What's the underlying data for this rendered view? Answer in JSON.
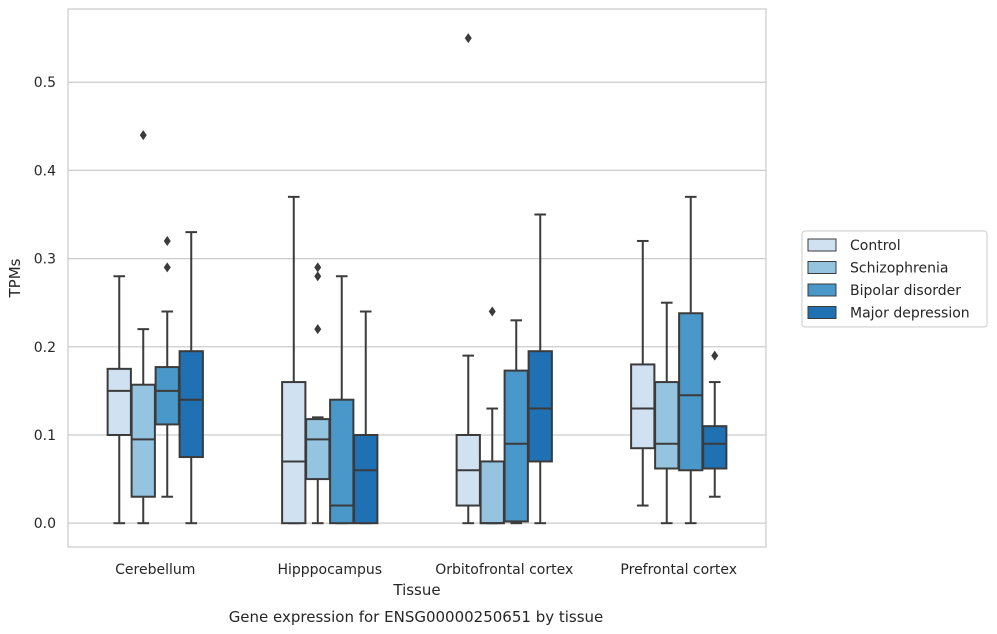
{
  "chart_data": {
    "type": "box",
    "title": "",
    "caption": "Gene expression for ENSG00000250651 by tissue",
    "xlabel": "Tissue",
    "ylabel": "TPMs",
    "ylim": [
      -0.027,
      0.583
    ],
    "yticks": [
      0.0,
      0.1,
      0.2,
      0.3,
      0.4,
      0.5
    ],
    "ytick_labels": [
      "0.0",
      "0.1",
      "0.2",
      "0.3",
      "0.4",
      "0.5"
    ],
    "grid": "horizontal",
    "legend_position": "right",
    "categories": [
      "Cerebellum",
      "Hipppocampus",
      "Orbitofrontal cortex",
      "Prefrontal cortex"
    ],
    "series": [
      {
        "name": "Control",
        "color": "#d0e1f2",
        "boxes": [
          {
            "whislo": 0.0,
            "q1": 0.1,
            "med": 0.15,
            "q3": 0.175,
            "whishi": 0.28,
            "fliers": []
          },
          {
            "whislo": 0.0,
            "q1": 0.0,
            "med": 0.07,
            "q3": 0.16,
            "whishi": 0.37,
            "fliers": []
          },
          {
            "whislo": 0.0,
            "q1": 0.02,
            "med": 0.06,
            "q3": 0.1,
            "whishi": 0.19,
            "fliers": [
              0.55
            ]
          },
          {
            "whislo": 0.02,
            "q1": 0.085,
            "med": 0.13,
            "q3": 0.18,
            "whishi": 0.32,
            "fliers": []
          }
        ]
      },
      {
        "name": "Schizophrenia",
        "color": "#94c4df",
        "boxes": [
          {
            "whislo": 0.0,
            "q1": 0.03,
            "med": 0.095,
            "q3": 0.157,
            "whishi": 0.22,
            "fliers": [
              0.44
            ]
          },
          {
            "whislo": 0.0,
            "q1": 0.05,
            "med": 0.095,
            "q3": 0.118,
            "whishi": 0.12,
            "fliers": [
              0.22,
              0.28,
              0.29
            ]
          },
          {
            "whislo": 0.0,
            "q1": 0.0,
            "med": 0.0,
            "q3": 0.07,
            "whishi": 0.13,
            "fliers": [
              0.24
            ]
          },
          {
            "whislo": 0.0,
            "q1": 0.062,
            "med": 0.09,
            "q3": 0.16,
            "whishi": 0.25,
            "fliers": []
          }
        ]
      },
      {
        "name": "Bipolar disorder",
        "color": "#4a98c9",
        "boxes": [
          {
            "whislo": 0.03,
            "q1": 0.112,
            "med": 0.15,
            "q3": 0.177,
            "whishi": 0.24,
            "fliers": [
              0.29,
              0.32
            ]
          },
          {
            "whislo": 0.0,
            "q1": 0.0,
            "med": 0.02,
            "q3": 0.14,
            "whishi": 0.28,
            "fliers": []
          },
          {
            "whislo": 0.0,
            "q1": 0.002,
            "med": 0.09,
            "q3": 0.173,
            "whishi": 0.23,
            "fliers": []
          },
          {
            "whislo": 0.0,
            "q1": 0.06,
            "med": 0.145,
            "q3": 0.238,
            "whishi": 0.37,
            "fliers": []
          }
        ]
      },
      {
        "name": "Major depression",
        "color": "#2070b4",
        "boxes": [
          {
            "whislo": 0.0,
            "q1": 0.075,
            "med": 0.14,
            "q3": 0.195,
            "whishi": 0.33,
            "fliers": []
          },
          {
            "whislo": 0.0,
            "q1": 0.0,
            "med": 0.06,
            "q3": 0.1,
            "whishi": 0.24,
            "fliers": []
          },
          {
            "whislo": 0.0,
            "q1": 0.07,
            "med": 0.13,
            "q3": 0.195,
            "whishi": 0.35,
            "fliers": []
          },
          {
            "whislo": 0.03,
            "q1": 0.062,
            "med": 0.09,
            "q3": 0.11,
            "whishi": 0.16,
            "fliers": [
              0.19
            ]
          }
        ]
      }
    ]
  }
}
